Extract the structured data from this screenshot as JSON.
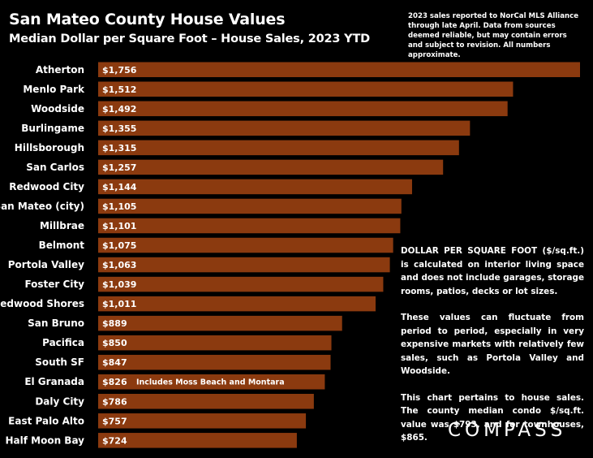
{
  "chart_data": {
    "type": "bar",
    "orientation": "horizontal",
    "title": "San Mateo County House Values",
    "subtitle": "Median Dollar per Square Foot – House Sales, 2023 YTD",
    "categories": [
      "Atherton",
      "Menlo Park",
      "Woodside",
      "Burlingame",
      "Hillsborough",
      "San Carlos",
      "Redwood City",
      "San Mateo (city)",
      "Millbrae",
      "Belmont",
      "Portola Valley",
      "Foster City",
      "Redwood Shores",
      "San Bruno",
      "Pacifica",
      "South SF",
      "El Granada",
      "Daly City",
      "East Palo Alto",
      "Half Moon Bay"
    ],
    "values": [
      1756,
      1512,
      1492,
      1355,
      1315,
      1257,
      1144,
      1105,
      1101,
      1075,
      1063,
      1039,
      1011,
      889,
      850,
      847,
      826,
      786,
      757,
      724
    ],
    "value_labels": [
      "$1,756",
      "$1,512",
      "$1,492",
      "$1,355",
      "$1,315",
      "$1,257",
      "$1,144",
      "$1,105",
      "$1,101",
      "$1,075",
      "$1,063",
      "$1,039",
      "$1,011",
      "$889",
      "$850",
      "$847",
      "$826",
      "$786",
      "$757",
      "$724"
    ],
    "annotations": [
      {
        "category": "El Granada",
        "text": "Includes Moss Beach and Montara"
      }
    ],
    "bar_color": "#8b3a0f",
    "xlim": [
      0,
      1756
    ],
    "grid": false,
    "legend": "none"
  },
  "source_note": "2023 sales reported to NorCal MLS Alliance through late April. Data from sources deemed reliable, but may contain errors and subject to revision. All numbers approximate.",
  "info_paragraphs": [
    "DOLLAR PER SQUARE FOOT ($/sq.ft.) is calculated on interior living space and does not include garages, storage rooms, patios, decks or lot sizes.",
    "These values can fluctuate from period to period, especially in very expensive markets with relatively few sales, such as Portola Valley and Woodside.",
    "This chart pertains to house sales. The county median condo $/sq.ft. value was $793, and for townhouses, $865."
  ],
  "logo": "COMPASS",
  "background_color": "#000000"
}
